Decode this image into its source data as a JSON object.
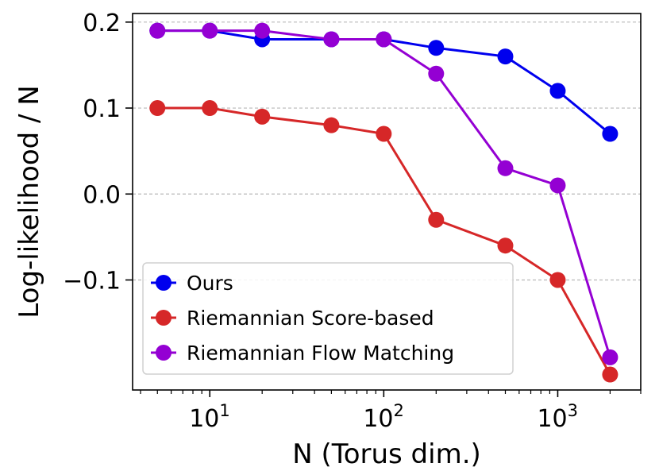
{
  "chart_data": {
    "type": "line",
    "xscale": "log",
    "x": [
      5,
      10,
      20,
      50,
      100,
      200,
      500,
      1000,
      2000
    ],
    "xlim": [
      3.6,
      3000
    ],
    "ylim": [
      -0.228,
      0.21
    ],
    "xlabel": "N (Torus dim.)",
    "ylabel": "Log-likelihood / N",
    "grid": "horizontal dashed",
    "legend_position": "lower-left",
    "y_ticks": [
      {
        "value": -0.1,
        "label": "−0.1"
      },
      {
        "value": 0.0,
        "label": "0.0"
      },
      {
        "value": 0.1,
        "label": "0.1"
      },
      {
        "value": 0.2,
        "label": "0.2"
      }
    ],
    "x_ticks": [
      {
        "value": 10,
        "base": "10",
        "exp": "1"
      },
      {
        "value": 100,
        "base": "10",
        "exp": "2"
      },
      {
        "value": 1000,
        "base": "10",
        "exp": "3"
      }
    ],
    "series": [
      {
        "name": "Ours",
        "color": "#0000ee",
        "values": [
          0.19,
          0.19,
          0.18,
          0.18,
          0.18,
          0.17,
          0.16,
          0.12,
          0.07
        ]
      },
      {
        "name": "Riemannian Score-based",
        "color": "#d62728",
        "values": [
          0.1,
          0.1,
          0.09,
          0.08,
          0.07,
          -0.03,
          -0.06,
          -0.1,
          -0.21
        ]
      },
      {
        "name": "Riemannian Flow Matching",
        "color": "#9400d3",
        "values": [
          0.19,
          0.19,
          0.19,
          0.18,
          0.18,
          0.14,
          0.03,
          0.01,
          -0.19
        ]
      }
    ]
  }
}
